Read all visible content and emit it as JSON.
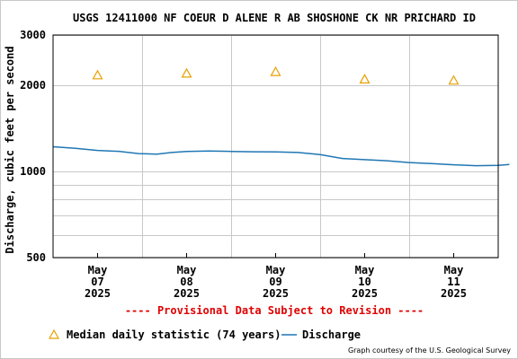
{
  "chart_data": {
    "type": "line",
    "title": "USGS 12411000 NF COEUR D ALENE R AB SHOSHONE CK NR PRICHARD ID",
    "ylabel": "Discharge, cubic feet per second",
    "xlabel": "",
    "y_scale": "log",
    "ylim": [
      500,
      3000
    ],
    "y_ticks": [
      500,
      1000,
      2000,
      3000
    ],
    "y_tick_labels": [
      "500",
      "1000",
      "2000",
      "3000"
    ],
    "y_minor_gridlines": [
      600,
      700,
      800,
      900
    ],
    "xlim": [
      "2025-05-07 00:00",
      "2025-05-12 00:00"
    ],
    "x_ticks": [
      {
        "date": "2025-05-07",
        "label": [
          "May",
          "07",
          "2025"
        ]
      },
      {
        "date": "2025-05-08",
        "label": [
          "May",
          "08",
          "2025"
        ]
      },
      {
        "date": "2025-05-09",
        "label": [
          "May",
          "09",
          "2025"
        ]
      },
      {
        "date": "2025-05-10",
        "label": [
          "May",
          "10",
          "2025"
        ]
      },
      {
        "date": "2025-05-11",
        "label": [
          "May",
          "11",
          "2025"
        ]
      }
    ],
    "grid": true,
    "series": [
      {
        "name": "Discharge",
        "kind": "line",
        "color": "#1f77b4",
        "points": [
          {
            "x": "2025-05-07 00:00",
            "y": 1220
          },
          {
            "x": "2025-05-07 06:00",
            "y": 1205
          },
          {
            "x": "2025-05-07 12:00",
            "y": 1185
          },
          {
            "x": "2025-05-07 18:00",
            "y": 1175
          },
          {
            "x": "2025-05-07 23:00",
            "y": 1155
          },
          {
            "x": "2025-05-08 04:00",
            "y": 1150
          },
          {
            "x": "2025-05-08 08:00",
            "y": 1165
          },
          {
            "x": "2025-05-08 12:00",
            "y": 1175
          },
          {
            "x": "2025-05-08 18:00",
            "y": 1180
          },
          {
            "x": "2025-05-09 00:00",
            "y": 1175
          },
          {
            "x": "2025-05-09 06:00",
            "y": 1172
          },
          {
            "x": "2025-05-09 12:00",
            "y": 1170
          },
          {
            "x": "2025-05-09 18:00",
            "y": 1165
          },
          {
            "x": "2025-05-10 00:00",
            "y": 1145
          },
          {
            "x": "2025-05-10 06:00",
            "y": 1110
          },
          {
            "x": "2025-05-10 12:00",
            "y": 1100
          },
          {
            "x": "2025-05-10 18:00",
            "y": 1090
          },
          {
            "x": "2025-05-11 00:00",
            "y": 1075
          },
          {
            "x": "2025-05-11 06:00",
            "y": 1065
          },
          {
            "x": "2025-05-11 12:00",
            "y": 1055
          },
          {
            "x": "2025-05-11 18:00",
            "y": 1048
          },
          {
            "x": "2025-05-12 00:00",
            "y": 1050
          },
          {
            "x": "2025-05-12 03:00",
            "y": 1058
          }
        ]
      },
      {
        "name": "Median daily statistic (74 years)",
        "kind": "marker",
        "marker": "triangle",
        "color": "#e8a000",
        "points": [
          {
            "x": "2025-05-07 12:00",
            "y": 2170
          },
          {
            "x": "2025-05-08 12:00",
            "y": 2200
          },
          {
            "x": "2025-05-09 12:00",
            "y": 2230
          },
          {
            "x": "2025-05-10 12:00",
            "y": 2100
          },
          {
            "x": "2025-05-11 12:00",
            "y": 2080
          }
        ]
      }
    ],
    "legend_placement": "bottom",
    "provisional_note": "---- Provisional Data Subject to Revision ----",
    "credit": "Graph courtesy of the U.S. Geological Survey"
  }
}
